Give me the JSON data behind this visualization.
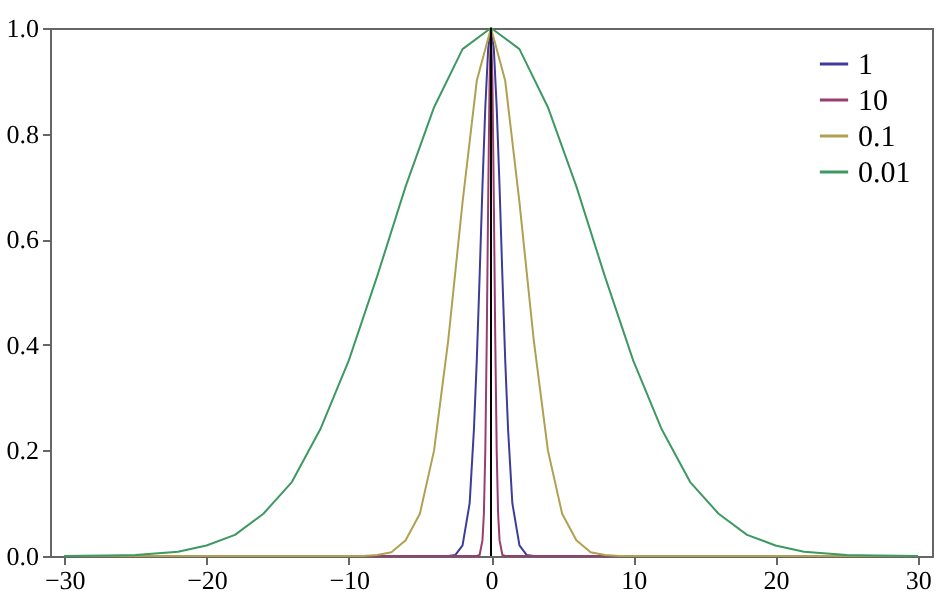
{
  "chart_data": {
    "type": "line",
    "xlim": [
      -31,
      31
    ],
    "ylim": [
      0,
      1
    ],
    "xticks": [
      {
        "value": -30,
        "label": "−30"
      },
      {
        "value": -20,
        "label": "−20"
      },
      {
        "value": -10,
        "label": "−10"
      },
      0,
      10,
      20,
      30
    ],
    "yticks": [
      {
        "value": 0,
        "label": "0.0"
      },
      {
        "value": 0.2,
        "label": "0.2"
      },
      {
        "value": 0.4,
        "label": "0.4"
      },
      {
        "value": 0.6,
        "label": "0.6"
      },
      {
        "value": 0.8,
        "label": "0.8"
      },
      {
        "value": 1,
        "label": "1.0"
      }
    ],
    "grid": false,
    "legend": "top right",
    "marker": "none",
    "line_style": "solid",
    "ref_lines": [
      {
        "axis": "x",
        "value": 0,
        "color": "#000000"
      }
    ],
    "series": [
      {
        "name": "1",
        "color": "#3d3d99",
        "x": [
          -30,
          -3,
          -2.5,
          -2,
          -1.5,
          -1.2,
          -1,
          -0.8,
          -0.6,
          -0.4,
          -0.2,
          0,
          0.2,
          0.4,
          0.6,
          0.8,
          1,
          1.2,
          1.5,
          2,
          2.5,
          3,
          30
        ],
        "values": [
          0,
          0,
          0.002,
          0.02,
          0.1,
          0.24,
          0.37,
          0.53,
          0.7,
          0.85,
          0.96,
          1,
          0.96,
          0.85,
          0.7,
          0.53,
          0.37,
          0.24,
          0.1,
          0.02,
          0.002,
          0,
          0
        ]
      },
      {
        "name": "10",
        "color": "#993d71",
        "x": [
          -30,
          -1,
          -0.8,
          -0.6,
          -0.5,
          -0.4,
          -0.3,
          -0.2,
          -0.1,
          0,
          0.1,
          0.2,
          0.3,
          0.4,
          0.5,
          0.6,
          0.8,
          1,
          30
        ],
        "values": [
          0,
          0,
          0.002,
          0.03,
          0.08,
          0.2,
          0.41,
          0.67,
          0.9,
          1,
          0.9,
          0.67,
          0.41,
          0.2,
          0.08,
          0.03,
          0.002,
          0,
          0
        ]
      },
      {
        "name": "0.1",
        "color": "#b0a050",
        "x": [
          -30,
          -9,
          -8,
          -7,
          -6,
          -5,
          -4,
          -3,
          -2,
          -1,
          0,
          1,
          2,
          3,
          4,
          5,
          6,
          7,
          8,
          9,
          30
        ],
        "values": [
          0,
          0,
          0.002,
          0.007,
          0.03,
          0.08,
          0.2,
          0.41,
          0.67,
          0.9,
          1,
          0.9,
          0.67,
          0.41,
          0.2,
          0.08,
          0.03,
          0.007,
          0.002,
          0,
          0
        ]
      },
      {
        "name": "0.01",
        "color": "#3d9960",
        "x": [
          -30,
          -27,
          -25,
          -22,
          -20,
          -18,
          -16,
          -14,
          -12,
          -10,
          -8,
          -6,
          -4,
          -2,
          0,
          2,
          4,
          6,
          8,
          10,
          12,
          14,
          16,
          18,
          20,
          22,
          25,
          27,
          30
        ],
        "values": [
          0,
          0.001,
          0.002,
          0.008,
          0.02,
          0.04,
          0.08,
          0.14,
          0.24,
          0.37,
          0.53,
          0.7,
          0.85,
          0.96,
          1,
          0.96,
          0.85,
          0.7,
          0.53,
          0.37,
          0.24,
          0.14,
          0.08,
          0.04,
          0.02,
          0.008,
          0.002,
          0.001,
          0
        ]
      }
    ]
  }
}
